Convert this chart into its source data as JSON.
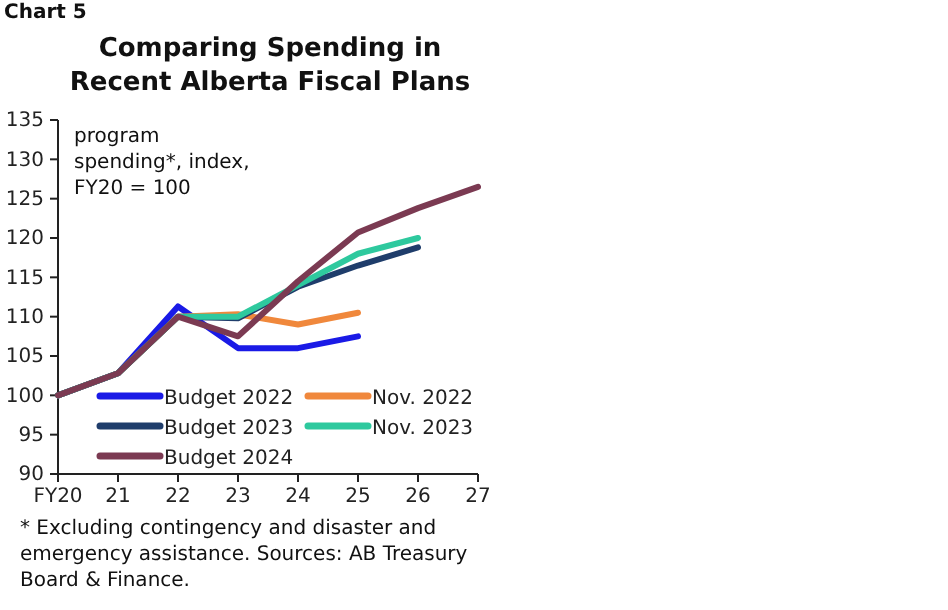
{
  "chart_data": {
    "type": "line",
    "title": "Comparing Spending in Recent Alberta Fiscal Plans",
    "ylabel": "program spending*, index, FY20 = 100",
    "annotations": [
      "Chart 5",
      "* Excluding contingency and disaster and emergency assistance. Sources: AB Treasury Board & Finance."
    ],
    "categories": [
      "FY20",
      "21",
      "22",
      "23",
      "24",
      "25",
      "26",
      "27"
    ],
    "series": [
      {
        "name": "Budget 2022",
        "color": "#1a1ae6",
        "values": [
          100,
          102.8,
          111.3,
          106,
          106,
          107.5,
          null,
          null
        ]
      },
      {
        "name": "Nov. 2022",
        "color": "#f0883c",
        "values": [
          100,
          102.8,
          110,
          110.3,
          109,
          110.5,
          null,
          null
        ]
      },
      {
        "name": "Budget 2023",
        "color": "#1f3d6b",
        "values": [
          100,
          102.8,
          110,
          109.8,
          113.8,
          116.5,
          118.8,
          null
        ]
      },
      {
        "name": "Nov. 2023",
        "color": "#2ec99e",
        "values": [
          100,
          102.8,
          110,
          110,
          114,
          118,
          120,
          null
        ]
      },
      {
        "name": "Budget 2024",
        "color": "#7b3a52",
        "values": [
          100,
          102.8,
          110,
          107.5,
          114.5,
          120.7,
          123.8,
          126.5
        ]
      }
    ],
    "ylim": [
      90,
      135
    ],
    "yticks": [
      90,
      95,
      100,
      105,
      110,
      115,
      120,
      125,
      130,
      135
    ],
    "grid": false,
    "legend": "bottom",
    "marker": "none",
    "line_style": "solid"
  }
}
